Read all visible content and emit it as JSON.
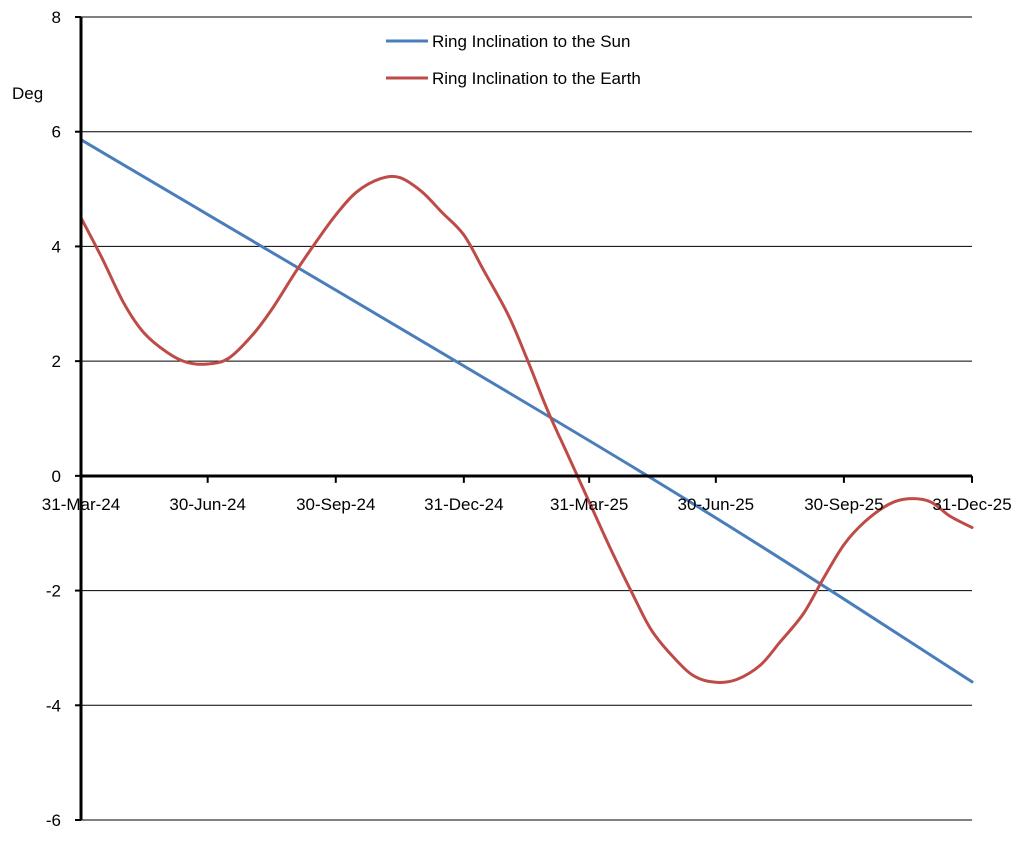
{
  "chart_data": {
    "type": "line",
    "title": "",
    "xlabel": "",
    "ylabel": "Deg",
    "ylim": [
      -6,
      8
    ],
    "yticks": [
      8,
      6,
      4,
      2,
      0,
      -2,
      -4,
      -6
    ],
    "xlim": [
      "2024-03-31",
      "2025-12-31"
    ],
    "xticks": [
      {
        "date": "2024-03-31",
        "label": "31-Mar-24"
      },
      {
        "date": "2024-06-30",
        "label": "30-Jun-24"
      },
      {
        "date": "2024-09-30",
        "label": "30-Sep-24"
      },
      {
        "date": "2024-12-31",
        "label": "31-Dec-24"
      },
      {
        "date": "2025-03-31",
        "label": "31-Mar-25"
      },
      {
        "date": "2025-06-30",
        "label": "30-Jun-25"
      },
      {
        "date": "2025-09-30",
        "label": "30-Sep-25"
      },
      {
        "date": "2025-12-31",
        "label": "31-Dec-25"
      }
    ],
    "grid": true,
    "legend_position": "top-center",
    "series": [
      {
        "name": "Ring Inclination to the Sun",
        "color": "#4a7ebb",
        "points": [
          [
            "2024-03-31",
            5.86
          ],
          [
            "2025-05-12",
            0.0
          ],
          [
            "2025-12-31",
            -3.59
          ]
        ]
      },
      {
        "name": "Ring Inclination to the Earth",
        "color": "#be4b48",
        "points": [
          [
            "2024-03-31",
            4.5
          ],
          [
            "2024-04-15",
            3.8
          ],
          [
            "2024-05-01",
            3.0
          ],
          [
            "2024-05-15",
            2.5
          ],
          [
            "2024-06-01",
            2.15
          ],
          [
            "2024-06-15",
            1.98
          ],
          [
            "2024-06-30",
            1.95
          ],
          [
            "2024-07-15",
            2.05
          ],
          [
            "2024-08-01",
            2.45
          ],
          [
            "2024-08-15",
            2.9
          ],
          [
            "2024-09-01",
            3.55
          ],
          [
            "2024-09-15",
            4.05
          ],
          [
            "2024-09-30",
            4.55
          ],
          [
            "2024-10-15",
            4.95
          ],
          [
            "2024-11-01",
            5.18
          ],
          [
            "2024-11-15",
            5.2
          ],
          [
            "2024-12-01",
            4.95
          ],
          [
            "2024-12-15",
            4.6
          ],
          [
            "2024-12-31",
            4.2
          ],
          [
            "2025-01-15",
            3.55
          ],
          [
            "2025-02-01",
            2.8
          ],
          [
            "2025-02-15",
            2.0
          ],
          [
            "2025-03-01",
            1.15
          ],
          [
            "2025-03-15",
            0.4
          ],
          [
            "2025-03-31",
            -0.45
          ],
          [
            "2025-04-15",
            -1.25
          ],
          [
            "2025-05-01",
            -2.05
          ],
          [
            "2025-05-15",
            -2.7
          ],
          [
            "2025-06-01",
            -3.2
          ],
          [
            "2025-06-15",
            -3.5
          ],
          [
            "2025-06-30",
            -3.6
          ],
          [
            "2025-07-15",
            -3.55
          ],
          [
            "2025-08-01",
            -3.3
          ],
          [
            "2025-08-15",
            -2.9
          ],
          [
            "2025-09-01",
            -2.4
          ],
          [
            "2025-09-15",
            -1.8
          ],
          [
            "2025-09-30",
            -1.2
          ],
          [
            "2025-10-15",
            -0.8
          ],
          [
            "2025-11-01",
            -0.5
          ],
          [
            "2025-11-15",
            -0.4
          ],
          [
            "2025-12-01",
            -0.45
          ],
          [
            "2025-12-15",
            -0.7
          ],
          [
            "2025-12-31",
            -0.9
          ]
        ]
      }
    ]
  }
}
